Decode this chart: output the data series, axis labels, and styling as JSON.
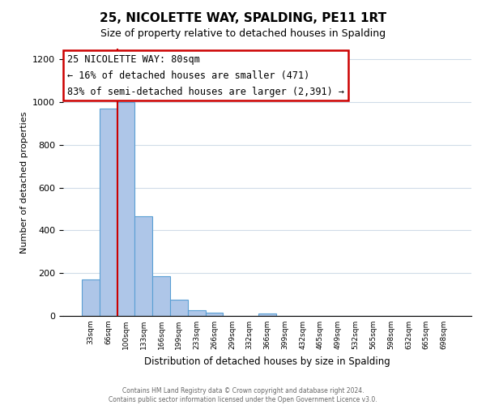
{
  "title": "25, NICOLETTE WAY, SPALDING, PE11 1RT",
  "subtitle": "Size of property relative to detached houses in Spalding",
  "xlabel": "Distribution of detached houses by size in Spalding",
  "ylabel": "Number of detached properties",
  "bar_labels": [
    "33sqm",
    "66sqm",
    "100sqm",
    "133sqm",
    "166sqm",
    "199sqm",
    "233sqm",
    "266sqm",
    "299sqm",
    "332sqm",
    "366sqm",
    "399sqm",
    "432sqm",
    "465sqm",
    "499sqm",
    "532sqm",
    "565sqm",
    "598sqm",
    "632sqm",
    "665sqm",
    "698sqm"
  ],
  "bar_values": [
    170,
    970,
    1000,
    465,
    185,
    75,
    25,
    15,
    0,
    0,
    10,
    0,
    0,
    0,
    0,
    0,
    0,
    0,
    0,
    0,
    0
  ],
  "bar_color": "#aec6e8",
  "bar_edge_color": "#5a9fd4",
  "annotation_title": "25 NICOLETTE WAY: 80sqm",
  "annotation_line1": "← 16% of detached houses are smaller (471)",
  "annotation_line2": "83% of semi-detached houses are larger (2,391) →",
  "annotation_box_color": "#ffffff",
  "annotation_box_edge": "#cc0000",
  "vline_color": "#cc0000",
  "ylim": [
    0,
    1250
  ],
  "yticks": [
    0,
    200,
    400,
    600,
    800,
    1000,
    1200
  ],
  "footer_line1": "Contains HM Land Registry data © Crown copyright and database right 2024.",
  "footer_line2": "Contains public sector information licensed under the Open Government Licence v3.0.",
  "title_fontsize": 11,
  "subtitle_fontsize": 9,
  "annotation_fontsize": 8.5
}
